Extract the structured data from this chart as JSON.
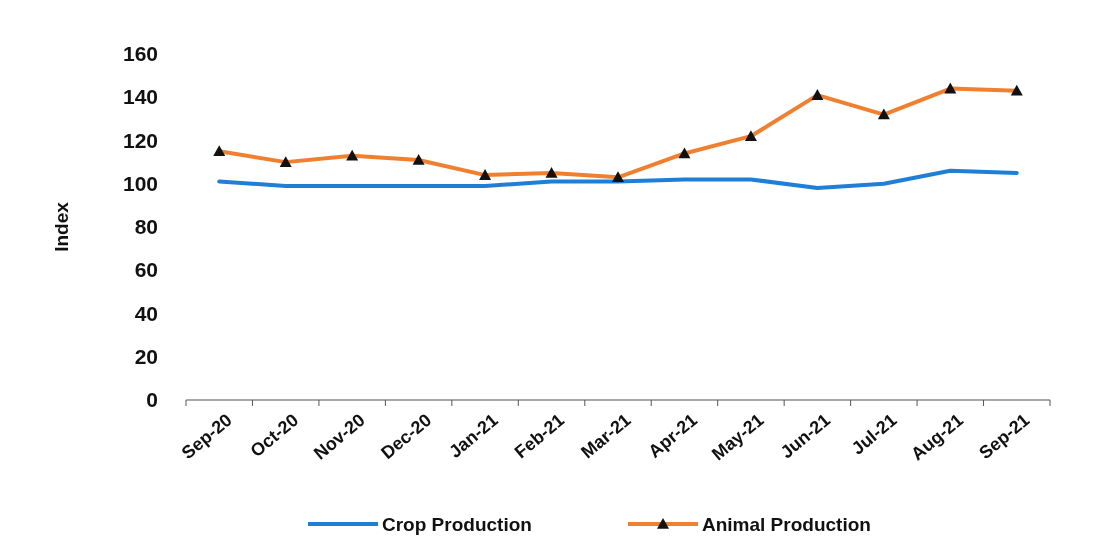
{
  "chart_data": {
    "type": "line",
    "ylabel": "Index",
    "categories": [
      "Sep-20",
      "Oct-20",
      "Nov-20",
      "Dec-20",
      "Jan-21",
      "Feb-21",
      "Mar-21",
      "Apr-21",
      "May-21",
      "Jun-21",
      "Jul-21",
      "Aug-21",
      "Sep-21"
    ],
    "series": [
      {
        "name": "Crop Production",
        "color": "#1f7fd6",
        "marker": "none",
        "values": [
          101,
          99,
          99,
          99,
          99,
          101,
          101,
          102,
          102,
          98,
          100,
          106,
          105
        ]
      },
      {
        "name": "Animal Production",
        "color": "#f08030",
        "marker": "triangle",
        "values": [
          115,
          110,
          113,
          111,
          104,
          105,
          103,
          114,
          122,
          141,
          132,
          144,
          143
        ]
      }
    ],
    "ylim": [
      0,
      160
    ],
    "yticks": [
      0,
      20,
      40,
      60,
      80,
      100,
      120,
      140,
      160
    ],
    "grid": false,
    "legend": "bottom",
    "line_style": "solid"
  }
}
